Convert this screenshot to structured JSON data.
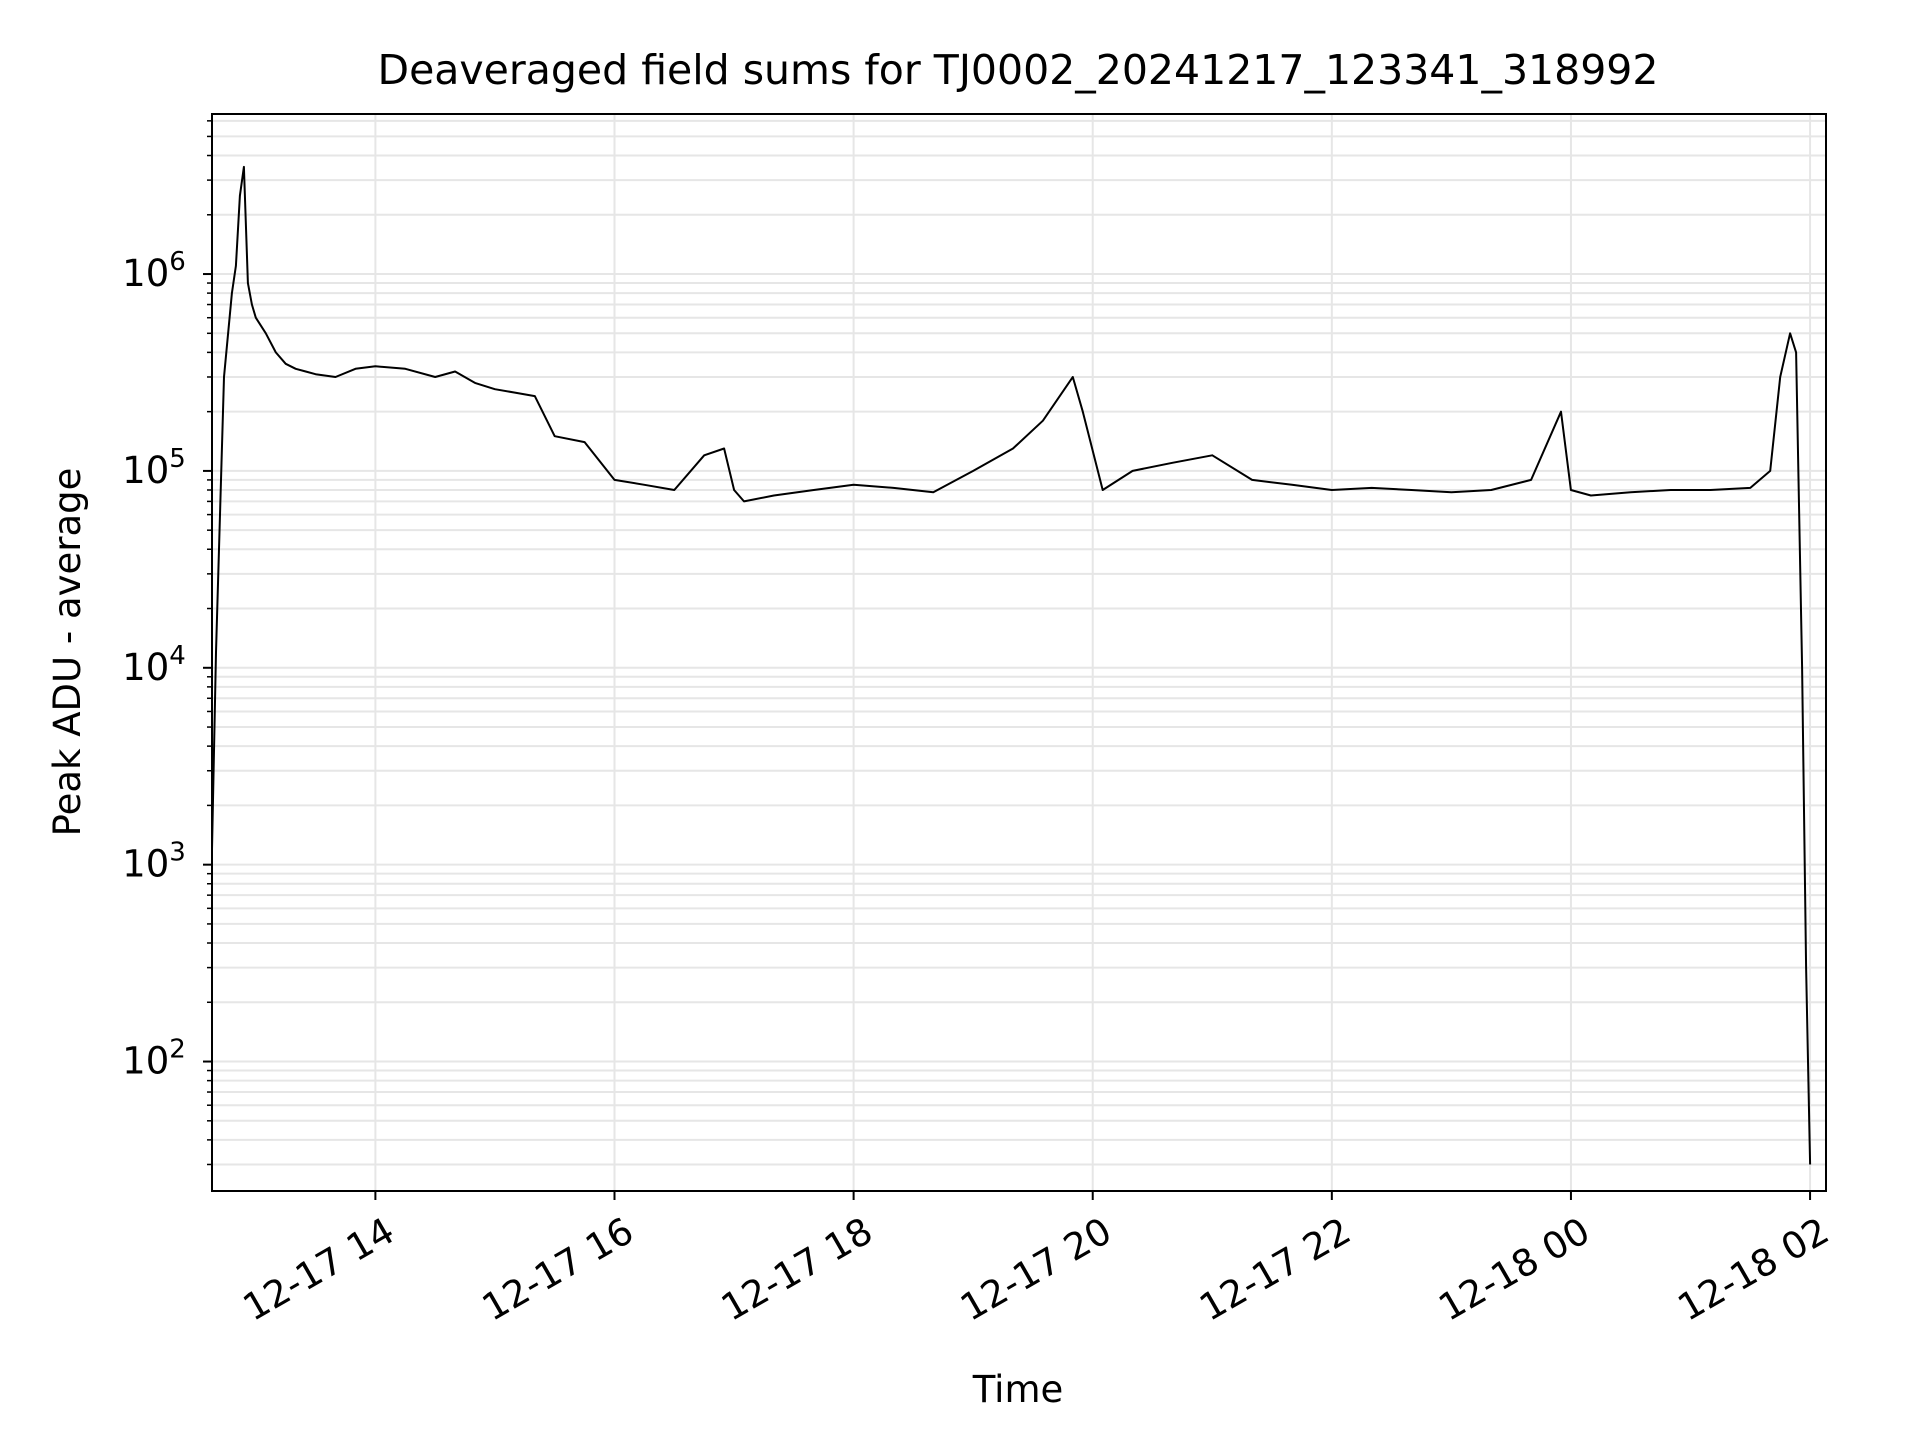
{
  "chart_data": {
    "type": "line",
    "title": "Deaveraged field sums for TJ0002_20241217_123341_318992",
    "xlabel": "Time",
    "ylabel": "Peak ADU - average",
    "yscale": "log",
    "xlim": [
      "2024-12-17 12:38",
      "2024-12-18 02:08"
    ],
    "ylim": [
      22,
      6500000
    ],
    "grid": true,
    "line_color": "#000000",
    "grid_color": "#e6e6e6",
    "xticks": [
      {
        "value": "2024-12-17 14:00",
        "label": "12-17 14"
      },
      {
        "value": "2024-12-17 16:00",
        "label": "12-17 16"
      },
      {
        "value": "2024-12-17 18:00",
        "label": "12-17 18"
      },
      {
        "value": "2024-12-17 20:00",
        "label": "12-17 20"
      },
      {
        "value": "2024-12-17 22:00",
        "label": "12-17 22"
      },
      {
        "value": "2024-12-18 00:00",
        "label": "12-18 00"
      },
      {
        "value": "2024-12-18 02:00",
        "label": "12-18 02"
      }
    ],
    "yticks": [
      {
        "value": 100,
        "base": "10",
        "exp": "2"
      },
      {
        "value": 1000,
        "base": "10",
        "exp": "3"
      },
      {
        "value": 10000,
        "base": "10",
        "exp": "4"
      },
      {
        "value": 100000,
        "base": "10",
        "exp": "5"
      },
      {
        "value": 1000000,
        "base": "10",
        "exp": "6"
      }
    ],
    "series": [
      {
        "x": [
          "2024-12-17 12:38",
          "2024-12-17 12:40",
          "2024-12-17 12:44",
          "2024-12-17 12:48",
          "2024-12-17 12:50",
          "2024-12-17 12:52",
          "2024-12-17 12:54",
          "2024-12-17 12:56",
          "2024-12-17 12:58",
          "2024-12-17 13:00",
          "2024-12-17 13:05",
          "2024-12-17 13:10",
          "2024-12-17 13:15",
          "2024-12-17 13:20",
          "2024-12-17 13:25",
          "2024-12-17 13:30",
          "2024-12-17 13:40",
          "2024-12-17 13:50",
          "2024-12-17 14:00",
          "2024-12-17 14:15",
          "2024-12-17 14:30",
          "2024-12-17 14:40",
          "2024-12-17 14:50",
          "2024-12-17 15:00",
          "2024-12-17 15:10",
          "2024-12-17 15:20",
          "2024-12-17 15:30",
          "2024-12-17 15:45",
          "2024-12-17 16:00",
          "2024-12-17 16:15",
          "2024-12-17 16:30",
          "2024-12-17 16:45",
          "2024-12-17 16:55",
          "2024-12-17 17:00",
          "2024-12-17 17:05",
          "2024-12-17 17:20",
          "2024-12-17 17:40",
          "2024-12-17 18:00",
          "2024-12-17 18:20",
          "2024-12-17 18:40",
          "2024-12-17 19:00",
          "2024-12-17 19:20",
          "2024-12-17 19:35",
          "2024-12-17 19:50",
          "2024-12-17 19:55",
          "2024-12-17 20:05",
          "2024-12-17 20:20",
          "2024-12-17 20:40",
          "2024-12-17 21:00",
          "2024-12-17 21:20",
          "2024-12-17 21:40",
          "2024-12-17 22:00",
          "2024-12-17 22:20",
          "2024-12-17 22:40",
          "2024-12-17 23:00",
          "2024-12-17 23:20",
          "2024-12-17 23:40",
          "2024-12-17 23:55",
          "2024-12-18 00:00",
          "2024-12-18 00:10",
          "2024-12-18 00:30",
          "2024-12-18 00:50",
          "2024-12-18 01:10",
          "2024-12-18 01:30",
          "2024-12-18 01:40",
          "2024-12-18 01:45",
          "2024-12-18 01:50",
          "2024-12-18 01:53",
          "2024-12-18 01:56",
          "2024-12-18 01:58",
          "2024-12-18 02:00"
        ],
        "y": [
          1200,
          12000,
          300000,
          800000,
          1100000,
          2500000,
          3500000,
          900000,
          700000,
          600000,
          500000,
          400000,
          350000,
          330000,
          320000,
          310000,
          300000,
          330000,
          340000,
          330000,
          300000,
          320000,
          280000,
          260000,
          250000,
          240000,
          150000,
          140000,
          90000,
          85000,
          80000,
          120000,
          130000,
          80000,
          70000,
          75000,
          80000,
          85000,
          82000,
          78000,
          100000,
          130000,
          180000,
          300000,
          200000,
          80000,
          100000,
          110000,
          120000,
          90000,
          85000,
          80000,
          82000,
          80000,
          78000,
          80000,
          90000,
          200000,
          80000,
          75000,
          78000,
          80000,
          80000,
          82000,
          100000,
          300000,
          500000,
          400000,
          10000,
          300,
          30
        ]
      }
    ]
  }
}
